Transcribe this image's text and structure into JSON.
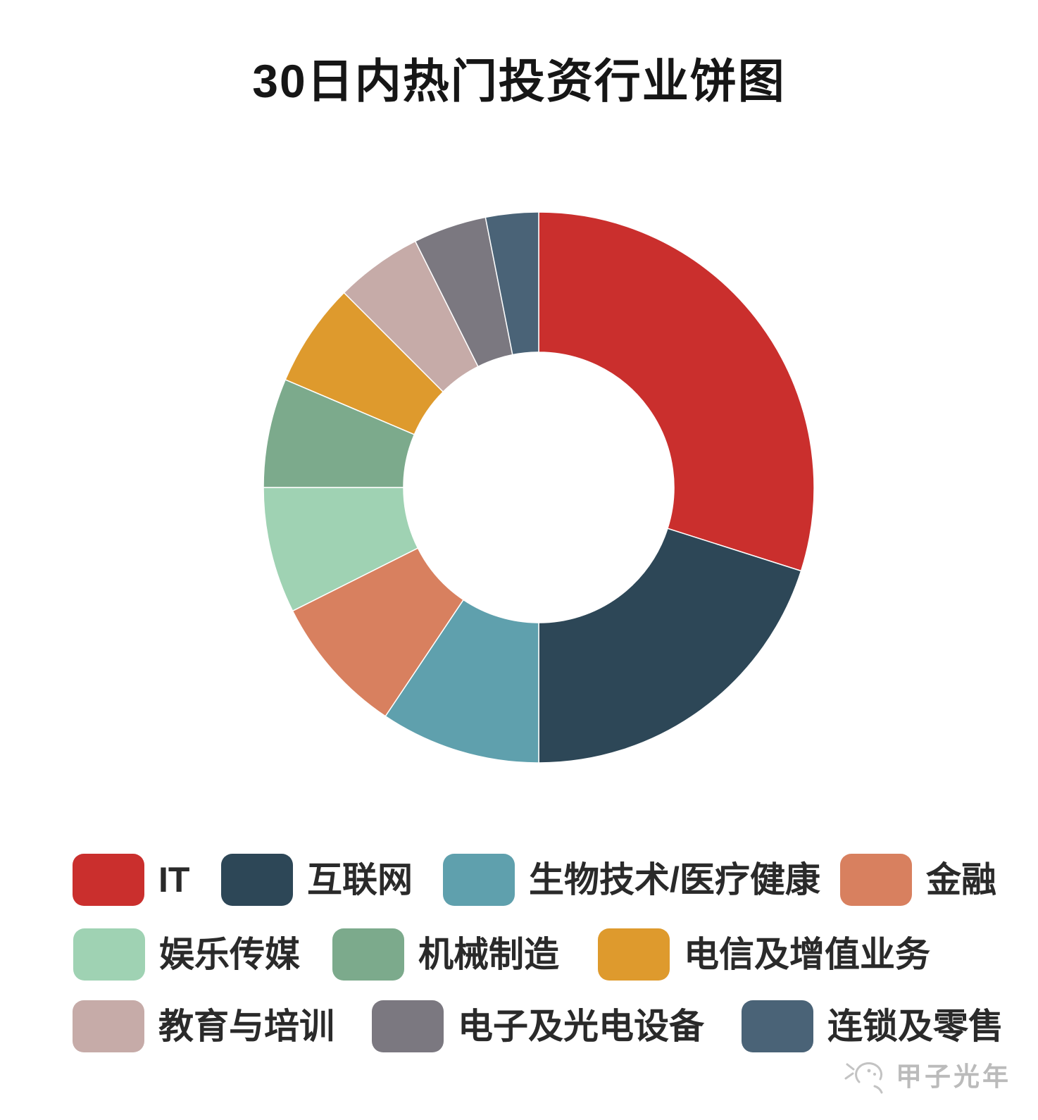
{
  "title": "30日内热门投资行业饼图",
  "watermark": {
    "text": "甲子光年",
    "color": "#bbbbbb"
  },
  "chart_data": {
    "type": "pie",
    "subtype": "donut",
    "title": "30日内热门投资行业饼图",
    "start_angle_deg": 0,
    "direction": "clockwise",
    "inner_radius_ratio": 0.49,
    "legend_position": "bottom",
    "units": "percent (estimated from arc angles; no numeric labels shown in image)",
    "slices": [
      {
        "label": "IT",
        "value": 29.9,
        "color": "#ca2f2d"
      },
      {
        "label": "互联网",
        "value": 20.1,
        "color": "#2d4757"
      },
      {
        "label": "生物技术/医疗健康",
        "value": 9.4,
        "color": "#5fa0ad"
      },
      {
        "label": "金融",
        "value": 8.2,
        "color": "#d8805f"
      },
      {
        "label": "娱乐传媒",
        "value": 7.4,
        "color": "#9fd2b3"
      },
      {
        "label": "机械制造",
        "value": 6.4,
        "color": "#7caa8c"
      },
      {
        "label": "电信及增值业务",
        "value": 6.1,
        "color": "#de9a2d"
      },
      {
        "label": "教育与培训",
        "value": 5.1,
        "color": "#c6aba8"
      },
      {
        "label": "电子及光电设备",
        "value": 4.3,
        "color": "#7b7880"
      },
      {
        "label": "连锁及零售",
        "value": 3.1,
        "color": "#4a6377"
      }
    ]
  }
}
